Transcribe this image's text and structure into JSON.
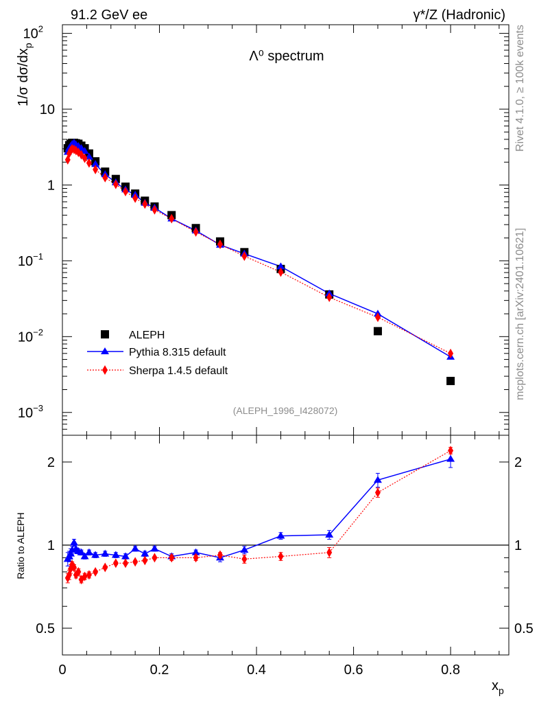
{
  "header": {
    "left_title": "91.2 GeV ee",
    "right_title": "γ*/Z (Hadronic)"
  },
  "side_labels": {
    "rivet": "Rivet 4.1.0, ≥ 100k events",
    "mcplots": "mcplots.cern.ch [arXiv:2401.10621]"
  },
  "chart_data": [
    {
      "type": "scatter",
      "title": "Λ⁰ spectrum",
      "ylabel": "1/σ dσ/dx_p",
      "xlabel": "x_p",
      "yscale": "log",
      "ylim": [
        0.0005,
        130
      ],
      "xlim": [
        0,
        0.92
      ],
      "grid": false,
      "legend_position": "bottom-left",
      "analysis_label": "(ALEPH_1996_I428072)",
      "yticks": [
        {
          "value": 100,
          "label": "10",
          "exp": "2"
        },
        {
          "value": 10,
          "label": "10",
          "exp": ""
        },
        {
          "value": 1,
          "label": "1",
          "exp": ""
        },
        {
          "value": 0.1,
          "label": "10",
          "exp": "−1"
        },
        {
          "value": 0.01,
          "label": "10",
          "exp": "−2"
        },
        {
          "value": 0.001,
          "label": "10",
          "exp": "−3"
        }
      ],
      "series": [
        {
          "name": "ALEPH",
          "style": "markers",
          "color": "#000000",
          "marker": "square",
          "x": [
            0.011,
            0.014,
            0.017,
            0.02,
            0.024,
            0.028,
            0.033,
            0.039,
            0.046,
            0.055,
            0.068,
            0.088,
            0.11,
            0.13,
            0.15,
            0.17,
            0.19,
            0.225,
            0.275,
            0.325,
            0.375,
            0.45,
            0.55,
            0.65,
            0.8
          ],
          "y": [
            3.05,
            3.35,
            3.5,
            3.6,
            3.6,
            3.55,
            3.5,
            3.3,
            3.05,
            2.6,
            2.05,
            1.5,
            1.2,
            0.95,
            0.77,
            0.62,
            0.52,
            0.4,
            0.27,
            0.18,
            0.13,
            0.078,
            0.036,
            0.0118,
            0.0026
          ]
        },
        {
          "name": "Pythia 8.315 default",
          "style": "solid",
          "color": "#0000ff",
          "marker": "triangle",
          "x": [
            0.011,
            0.014,
            0.017,
            0.02,
            0.024,
            0.028,
            0.033,
            0.039,
            0.046,
            0.055,
            0.068,
            0.088,
            0.11,
            0.13,
            0.15,
            0.17,
            0.19,
            0.225,
            0.275,
            0.325,
            0.375,
            0.45,
            0.55,
            0.65,
            0.8
          ],
          "y": [
            2.72,
            3.05,
            3.25,
            3.45,
            3.6,
            3.4,
            3.25,
            3.05,
            2.8,
            2.35,
            1.88,
            1.38,
            1.08,
            0.87,
            0.74,
            0.58,
            0.5,
            0.36,
            0.25,
            0.162,
            0.124,
            0.084,
            0.037,
            0.02,
            0.0054
          ]
        },
        {
          "name": "Sherpa 1.4.5 default",
          "style": "dotted",
          "color": "#ff0000",
          "marker": "diamond",
          "x": [
            0.011,
            0.014,
            0.017,
            0.02,
            0.024,
            0.028,
            0.033,
            0.039,
            0.046,
            0.055,
            0.068,
            0.088,
            0.11,
            0.13,
            0.15,
            0.17,
            0.19,
            0.225,
            0.275,
            0.325,
            0.375,
            0.45,
            0.55,
            0.65,
            0.8
          ],
          "y": [
            2.15,
            2.6,
            2.85,
            3.0,
            2.95,
            2.85,
            2.7,
            2.5,
            2.25,
            1.95,
            1.6,
            1.25,
            1.02,
            0.82,
            0.67,
            0.56,
            0.47,
            0.36,
            0.24,
            0.165,
            0.115,
            0.071,
            0.033,
            0.018,
            0.006
          ]
        }
      ]
    },
    {
      "type": "line",
      "ylabel": "Ratio to ALEPH",
      "xlabel": "x_p",
      "yscale": "log",
      "ylim": [
        0.4,
        2.5
      ],
      "xlim": [
        0,
        0.92
      ],
      "grid": false,
      "reference_line": 1,
      "yticks": [
        {
          "value": 2,
          "label": "2"
        },
        {
          "value": 1,
          "label": "1"
        },
        {
          "value": 0.5,
          "label": "0.5"
        }
      ],
      "xticks": [
        {
          "value": 0,
          "label": "0"
        },
        {
          "value": 0.2,
          "label": "0.2"
        },
        {
          "value": 0.4,
          "label": "0.4"
        },
        {
          "value": 0.6,
          "label": "0.6"
        },
        {
          "value": 0.8,
          "label": "0.8"
        }
      ],
      "series": [
        {
          "name": "Pythia 8.315 default",
          "style": "solid",
          "color": "#0000ff",
          "marker": "triangle",
          "x": [
            0.011,
            0.014,
            0.017,
            0.02,
            0.024,
            0.028,
            0.033,
            0.039,
            0.046,
            0.055,
            0.068,
            0.088,
            0.11,
            0.13,
            0.15,
            0.17,
            0.19,
            0.225,
            0.275,
            0.325,
            0.375,
            0.45,
            0.55,
            0.65,
            0.8
          ],
          "y": [
            0.89,
            0.91,
            0.93,
            0.96,
            1.02,
            0.97,
            0.95,
            0.94,
            0.91,
            0.94,
            0.92,
            0.93,
            0.92,
            0.91,
            0.97,
            0.93,
            0.97,
            0.91,
            0.94,
            0.9,
            0.96,
            1.08,
            1.09,
            1.72,
            2.05
          ],
          "err": [
            0.05,
            0.04,
            0.04,
            0.03,
            0.03,
            0.03,
            0.02,
            0.02,
            0.02,
            0.02,
            0.02,
            0.02,
            0.02,
            0.02,
            0.02,
            0.02,
            0.02,
            0.02,
            0.02,
            0.03,
            0.03,
            0.03,
            0.04,
            0.1,
            0.14
          ]
        },
        {
          "name": "Sherpa 1.4.5 default",
          "style": "dotted",
          "color": "#ff0000",
          "marker": "diamond",
          "x": [
            0.011,
            0.014,
            0.017,
            0.02,
            0.024,
            0.028,
            0.033,
            0.039,
            0.046,
            0.055,
            0.068,
            0.088,
            0.11,
            0.13,
            0.15,
            0.17,
            0.19,
            0.225,
            0.275,
            0.325,
            0.375,
            0.45,
            0.55,
            0.65,
            0.8
          ],
          "y": [
            0.76,
            0.78,
            0.82,
            0.85,
            0.83,
            0.78,
            0.8,
            0.75,
            0.77,
            0.78,
            0.8,
            0.83,
            0.86,
            0.86,
            0.87,
            0.88,
            0.9,
            0.9,
            0.9,
            0.92,
            0.89,
            0.91,
            0.94,
            1.55,
            2.2
          ],
          "err": [
            0.03,
            0.03,
            0.03,
            0.02,
            0.02,
            0.02,
            0.02,
            0.02,
            0.02,
            0.02,
            0.01,
            0.01,
            0.01,
            0.01,
            0.01,
            0.01,
            0.01,
            0.02,
            0.02,
            0.02,
            0.03,
            0.03,
            0.04,
            0.06,
            0.06
          ]
        }
      ]
    }
  ]
}
